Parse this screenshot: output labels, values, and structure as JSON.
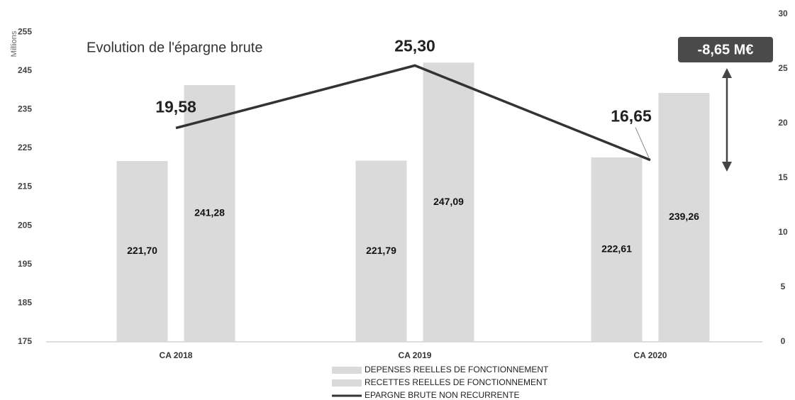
{
  "chart_data": {
    "type": "bar-line",
    "title": "Evolution de l'épargne brute",
    "ylabel": "Millions",
    "annotation": "-8,65 M€",
    "categories": [
      "CA 2018",
      "CA 2019",
      "CA 2020"
    ],
    "series": [
      {
        "name": "DEPENSES REELLES DE FONCTIONNEMENT",
        "type": "bar",
        "color": "#dadada",
        "values": [
          221.7,
          221.79,
          222.61
        ],
        "value_labels": [
          "221,70",
          "221,79",
          "222,61"
        ]
      },
      {
        "name": "RECETTES REELLES DE FONCTIONNEMENT",
        "type": "bar",
        "color": "#dadada",
        "values": [
          241.28,
          247.09,
          239.26
        ],
        "value_labels": [
          "241,28",
          "247,09",
          "239,26"
        ]
      },
      {
        "name": "EPARGNE BRUTE NON RECURRENTE",
        "type": "line",
        "axis": "y2",
        "color": "#333333",
        "values": [
          19.58,
          25.3,
          16.65
        ],
        "value_labels": [
          "19,58",
          "25,30",
          "16,65"
        ]
      }
    ],
    "ylim": [
      175,
      259.6
    ],
    "yticks": [
      175,
      185,
      195,
      205,
      215,
      225,
      235,
      245,
      255
    ],
    "y2lim": [
      0,
      30
    ],
    "y2ticks": [
      0,
      5,
      10,
      15,
      20,
      25,
      30
    ],
    "grid": false
  }
}
